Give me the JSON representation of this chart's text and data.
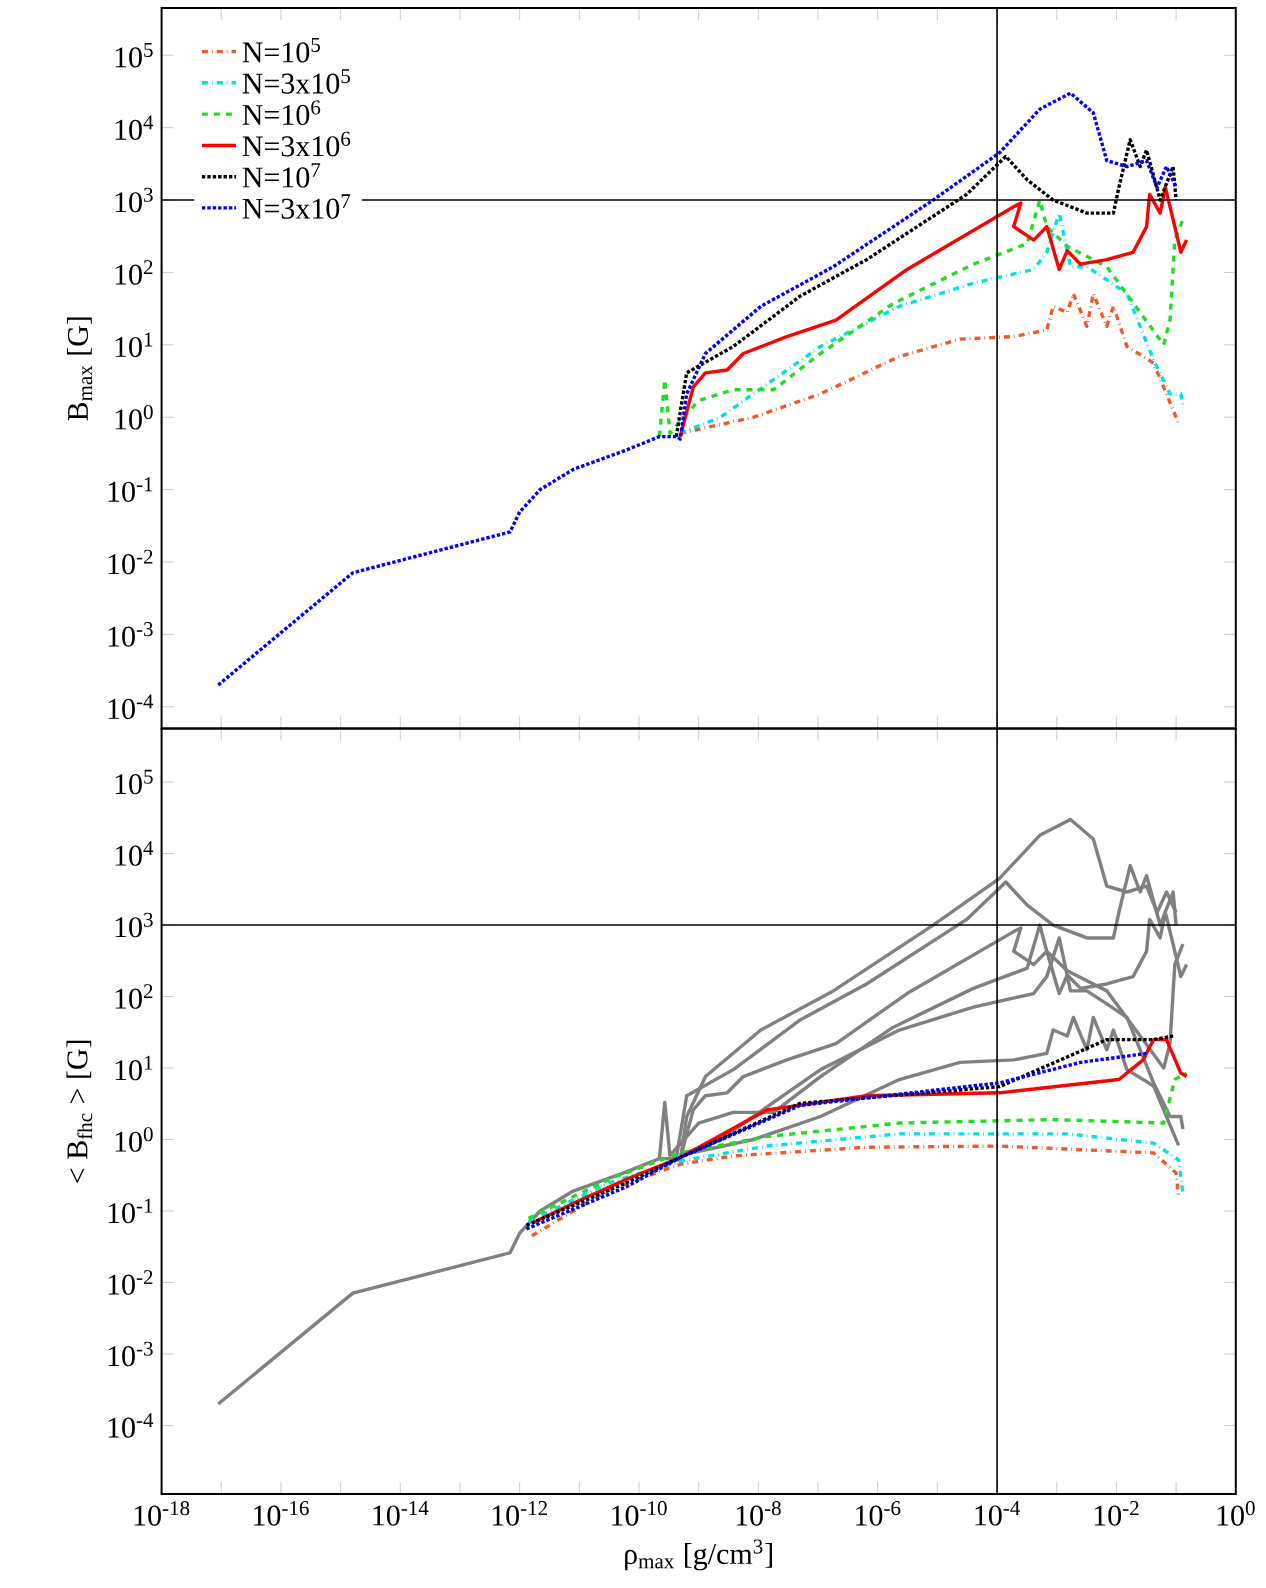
{
  "chart_data": [
    {
      "type": "line",
      "ylabel": "B$_{max}$ [G]",
      "log": "xy",
      "grid": false,
      "legend": "top left",
      "marker": "none",
      "tick_labels": "y",
      "xlim": [
        1e-18,
        1
      ],
      "ylim": [
        5e-05,
        450000.0
      ],
      "xticks": [
        {
          "value": 1e-18,
          "label": null
        },
        {
          "value": 1e-17,
          "label": null
        },
        {
          "value": 1e-16,
          "label": null
        },
        {
          "value": 1e-15,
          "label": null
        },
        {
          "value": 1e-14,
          "label": null
        },
        {
          "value": 1e-13,
          "label": null
        },
        {
          "value": 1e-12,
          "label": null
        },
        {
          "value": 1e-11,
          "label": null
        },
        {
          "value": 1e-10,
          "label": null
        },
        {
          "value": 1e-09,
          "label": null
        },
        {
          "value": 1e-08,
          "label": null
        },
        {
          "value": 1e-07,
          "label": null
        },
        {
          "value": 1e-06,
          "label": null
        },
        {
          "value": 1e-05,
          "label": null
        },
        {
          "value": 0.0001,
          "label": null
        },
        {
          "value": 0.001,
          "label": null
        },
        {
          "value": 0.01,
          "label": null
        },
        {
          "value": 0.1,
          "label": null
        },
        {
          "value": 1,
          "label": null
        }
      ],
      "yticks": [
        {
          "value": 0.0001,
          "label": "10$^{-4}$"
        },
        {
          "value": 0.001,
          "label": "10$^{-3}$"
        },
        {
          "value": 0.01,
          "label": "10$^{-2}$"
        },
        {
          "value": 0.1,
          "label": "10$^{-1}$"
        },
        {
          "value": 1,
          "label": "10$^{0}$"
        },
        {
          "value": 10,
          "label": "10$^{1}$"
        },
        {
          "value": 100,
          "label": "10$^{2}$"
        },
        {
          "value": 1000,
          "label": "10$^{3}$"
        },
        {
          "value": 10000.0,
          "label": "10$^{4}$"
        },
        {
          "value": 100000.0,
          "label": "10$^{5}$"
        }
      ],
      "ref_lines": [
        {
          "axis": "x",
          "value": 0.0001,
          "color": "#000000"
        },
        {
          "axis": "y",
          "value": 1000,
          "color": "#000000"
        }
      ],
      "series": [
        {
          "name": "N=10$^{5}$",
          "color": "#f05a28",
          "line_style": "dashdot",
          "x": [
            4.9e-10,
            8.3e-09,
            1.1e-07,
            2.3e-06,
            2.4e-05,
            0.00019,
            0.00068,
            0.00087,
            0.0015,
            0.0019,
            0.0032,
            0.0041,
            0.0069,
            0.0089,
            0.015,
            0.042,
            0.11
          ],
          "values": [
            0.6,
            1.0,
            2.1,
            6.9,
            12,
            13,
            16,
            34,
            28,
            51,
            18,
            51,
            18,
            34,
            9.5,
            5.6,
            0.83
          ]
        },
        {
          "name": "N=3x10$^{5}$",
          "color": "#00e0e8",
          "line_style": "dashdot",
          "x": [
            4.9e-10,
            2.3e-09,
            1.1e-07,
            2.3e-06,
            4e-05,
            0.00041,
            0.00068,
            0.0011,
            0.0017,
            0.0032,
            0.0069,
            0.015,
            0.042,
            0.079,
            0.12,
            0.13
          ],
          "values": [
            0.6,
            1.0,
            9.5,
            34,
            71,
            110,
            190,
            660,
            120,
            120,
            79,
            51,
            6.2,
            2.1,
            2.1,
            1.4
          ]
        },
        {
          "name": "N=10$^{6}$",
          "color": "#22dd22",
          "line_style": "dashed",
          "x": [
            2.2e-10,
            2.7e-10,
            3.3e-10,
            1e-09,
            3.8e-09,
            1.8e-08,
            1.1e-07,
            1.8e-06,
            4e-05,
            0.00032,
            0.00052,
            0.00068,
            0.0015,
            0.0069,
            0.025,
            0.062,
            0.079,
            0.095,
            0.13
          ],
          "values": [
            0.54,
            3.3,
            0.6,
            1.7,
            2.4,
            2.4,
            7.6,
            37,
            130,
            250,
            1000,
            430,
            230,
            120,
            28,
            10,
            22,
            280,
            540
          ]
        },
        {
          "name": "N=3x10$^{6}$",
          "color": "#ff0000",
          "line_style": "solid",
          "x": [
            4.9e-10,
            8.1e-10,
            1.3e-09,
            3e-09,
            5.6e-09,
            3e-08,
            2e-07,
            3.1e-06,
            0.00019,
            0.00025,
            0.00019,
            0.00041,
            0.00068,
            0.0011,
            0.0015,
            0.0025,
            0.0069,
            0.019,
            0.032,
            0.036,
            0.054,
            0.066,
            0.089,
            0.12,
            0.15
          ],
          "values": [
            0.54,
            2.6,
            4.1,
            4.5,
            7.6,
            13,
            22,
            110,
            810,
            910,
            430,
            280,
            430,
            110,
            200,
            130,
            150,
            190,
            430,
            1200,
            660,
            1500,
            540,
            190,
            280
          ]
        },
        {
          "name": "N=10$^{7}$",
          "color": "#000000",
          "line_style": "dotted",
          "x": [
            4.2e-10,
            6.3e-10,
            3.8e-09,
            5e-08,
            6.5e-07,
            3.1e-05,
            0.00014,
            0.00032,
            0.00087,
            0.0032,
            0.0089,
            0.011,
            0.017,
            0.025,
            0.032,
            0.054,
            0.089,
            0.1
          ],
          "values": [
            0.54,
            4.1,
            9.5,
            47,
            150,
            1200,
            4000,
            1900,
            1000,
            660,
            660,
            1500,
            6800,
            2900,
            4900,
            1000,
            2900,
            1000
          ]
        },
        {
          "name": "N=3x10$^{7}$",
          "color": "#0000ff",
          "line_style": "dotted",
          "x": [
            8.9e-18,
            1.6e-15,
            6.9e-13,
            1e-12,
            2.2e-12,
            7.9e-12,
            6e-11,
            2.2e-10,
            4.2e-10,
            4.9e-10,
            6.3e-10,
            1.3e-09,
            1.1e-08,
            1.8e-07,
            8.5e-06,
            0.00011,
            0.00052,
            0.0017,
            0.0041,
            0.0069,
            0.015,
            0.032,
            0.048,
            0.069,
            0.1
          ],
          "values": [
            0.0002,
            0.0071,
            0.026,
            0.049,
            0.1,
            0.19,
            0.35,
            0.54,
            0.54,
            0.5,
            2.1,
            7.6,
            34,
            120,
            1000,
            4500,
            18000,
            30000,
            16000,
            3500,
            2900,
            3500,
            1500,
            2900,
            1500
          ]
        }
      ]
    },
    {
      "type": "line",
      "xlabel": "ρ$_{max}$ [g/cm$^{3}$]",
      "ylabel": "< B$_{fhc}$ > [G]",
      "log": "xy",
      "grid": false,
      "marker": "none",
      "xlim": [
        1e-18,
        1
      ],
      "ylim": [
        1.1e-05,
        560000.0
      ],
      "xticks": [
        {
          "value": 1e-18,
          "label": "10$^{-18}$"
        },
        {
          "value": 1e-17,
          "label": null
        },
        {
          "value": 1e-16,
          "label": "10$^{-16}$"
        },
        {
          "value": 1e-15,
          "label": null
        },
        {
          "value": 1e-14,
          "label": "10$^{-14}$"
        },
        {
          "value": 1e-13,
          "label": null
        },
        {
          "value": 1e-12,
          "label": "10$^{-12}$"
        },
        {
          "value": 1e-11,
          "label": null
        },
        {
          "value": 1e-10,
          "label": "10$^{-10}$"
        },
        {
          "value": 1e-09,
          "label": null
        },
        {
          "value": 1e-08,
          "label": "10$^{-8}$"
        },
        {
          "value": 1e-07,
          "label": null
        },
        {
          "value": 1e-06,
          "label": "10$^{-6}$"
        },
        {
          "value": 1e-05,
          "label": null
        },
        {
          "value": 0.0001,
          "label": "10$^{-4}$"
        },
        {
          "value": 0.001,
          "label": null
        },
        {
          "value": 0.01,
          "label": "10$^{-2}$"
        },
        {
          "value": 0.1,
          "label": null
        },
        {
          "value": 1,
          "label": "10$^{0}$"
        }
      ],
      "yticks": [
        {
          "value": 0.0001,
          "label": "10$^{-4}$"
        },
        {
          "value": 0.001,
          "label": "10$^{-3}$"
        },
        {
          "value": 0.01,
          "label": "10$^{-2}$"
        },
        {
          "value": 0.1,
          "label": "10$^{-1}$"
        },
        {
          "value": 1,
          "label": "10$^{0}$"
        },
        {
          "value": 10,
          "label": "10$^{1}$"
        },
        {
          "value": 100,
          "label": "10$^{2}$"
        },
        {
          "value": 1000,
          "label": "10$^{3}$"
        },
        {
          "value": 10000.0,
          "label": "10$^{4}$"
        },
        {
          "value": 100000.0,
          "label": "10$^{5}$"
        }
      ],
      "ref_lines": [
        {
          "axis": "x",
          "value": 0.0001,
          "color": "#000000"
        },
        {
          "axis": "y",
          "value": 1000,
          "color": "#000000"
        }
      ],
      "series": [
        {
          "color": "#808080",
          "line_style": "solid",
          "x": [
            4.9e-10,
            8.3e-09,
            1.1e-07,
            2.3e-06,
            2.4e-05,
            0.00019,
            0.00068,
            0.00087,
            0.0015,
            0.0019,
            0.0032,
            0.0041,
            0.0069,
            0.0089,
            0.015,
            0.042,
            0.11
          ],
          "values": [
            0.6,
            1.0,
            2.1,
            6.9,
            12,
            13,
            16,
            34,
            28,
            51,
            18,
            51,
            18,
            34,
            9.5,
            5.6,
            0.83
          ]
        },
        {
          "color": "#808080",
          "line_style": "solid",
          "x": [
            4.9e-10,
            2.3e-09,
            1.1e-07,
            2.3e-06,
            4e-05,
            0.00041,
            0.00068,
            0.0011,
            0.0017,
            0.0032,
            0.0069,
            0.015,
            0.042,
            0.079,
            0.12,
            0.13
          ],
          "values": [
            0.6,
            1.0,
            9.5,
            34,
            71,
            110,
            190,
            660,
            120,
            120,
            79,
            51,
            6.2,
            2.1,
            2.1,
            1.4
          ]
        },
        {
          "color": "#808080",
          "line_style": "solid",
          "x": [
            2.2e-10,
            2.7e-10,
            3.3e-10,
            1e-09,
            3.8e-09,
            1.8e-08,
            1.1e-07,
            1.8e-06,
            4e-05,
            0.00032,
            0.00052,
            0.00068,
            0.0015,
            0.0069,
            0.025,
            0.062,
            0.079,
            0.095,
            0.13
          ],
          "values": [
            0.54,
            3.3,
            0.6,
            1.7,
            2.4,
            2.4,
            7.6,
            37,
            130,
            250,
            1000,
            430,
            230,
            120,
            28,
            10,
            22,
            280,
            540
          ]
        },
        {
          "color": "#808080",
          "line_style": "solid",
          "x": [
            4.9e-10,
            8.1e-10,
            1.3e-09,
            3e-09,
            5.6e-09,
            3e-08,
            2e-07,
            3.1e-06,
            0.00019,
            0.00025,
            0.00019,
            0.00041,
            0.00068,
            0.0011,
            0.0015,
            0.0025,
            0.0069,
            0.019,
            0.032,
            0.036,
            0.054,
            0.066,
            0.089,
            0.12,
            0.15
          ],
          "values": [
            0.54,
            2.6,
            4.1,
            4.5,
            7.6,
            13,
            22,
            110,
            810,
            910,
            430,
            280,
            430,
            110,
            200,
            130,
            150,
            190,
            430,
            1200,
            660,
            1500,
            540,
            190,
            280
          ]
        },
        {
          "color": "#808080",
          "line_style": "solid",
          "x": [
            4.2e-10,
            6.3e-10,
            3.8e-09,
            5e-08,
            6.5e-07,
            3.1e-05,
            0.00014,
            0.00032,
            0.00087,
            0.0032,
            0.0089,
            0.011,
            0.017,
            0.025,
            0.032,
            0.054,
            0.089,
            0.1
          ],
          "values": [
            0.54,
            4.1,
            9.5,
            47,
            150,
            1200,
            4000,
            1900,
            1000,
            660,
            660,
            1500,
            6800,
            2900,
            4900,
            1000,
            2900,
            1000
          ]
        },
        {
          "color": "#808080",
          "line_style": "solid",
          "x": [
            8.9e-18,
            1.6e-15,
            6.9e-13,
            1e-12,
            2.2e-12,
            7.9e-12,
            6e-11,
            2.2e-10,
            4.2e-10,
            4.9e-10,
            6.3e-10,
            1.3e-09,
            1.1e-08,
            1.8e-07,
            8.5e-06,
            0.00011,
            0.00052,
            0.0017,
            0.0041,
            0.0069,
            0.015,
            0.032,
            0.048,
            0.069,
            0.1
          ],
          "values": [
            0.0002,
            0.0071,
            0.026,
            0.049,
            0.1,
            0.19,
            0.35,
            0.54,
            0.54,
            0.5,
            2.1,
            7.6,
            34,
            120,
            1000,
            4500,
            18000,
            30000,
            16000,
            3500,
            2900,
            3500,
            1500,
            2900,
            1500
          ]
        },
        {
          "color": "#f05a28",
          "line_style": "dashdot",
          "x": [
            1.6e-12,
            3.2e-11,
            4.9e-10,
            3.8e-09,
            6.5e-07,
            0.00011,
            0.042,
            0.1,
            0.11
          ],
          "values": [
            0.045,
            0.2,
            0.45,
            0.59,
            0.78,
            0.81,
            0.65,
            0.34,
            0.16
          ]
        },
        {
          "color": "#00e0e8",
          "line_style": "dashdot",
          "x": [
            1.4e-12,
            3.2e-11,
            4.9e-10,
            1.4e-08,
            2.3e-06,
            0.0015,
            0.042,
            0.11,
            0.13
          ],
          "values": [
            0.071,
            0.25,
            0.5,
            0.81,
            1.2,
            1.2,
            0.89,
            0.52,
            0.18
          ]
        },
        {
          "color": "#22dd22",
          "line_style": "dashed",
          "x": [
            1.4e-12,
            3.2e-11,
            4.9e-10,
            1.4e-08,
            2.3e-06,
            0.00087,
            0.062,
            0.095,
            0.15
          ],
          "values": [
            0.079,
            0.28,
            0.65,
            1.1,
            1.7,
            1.9,
            1.7,
            6.9,
            8.5
          ]
        },
        {
          "color": "#ff0000",
          "line_style": "solid",
          "x": [
            1.7e-12,
            1e-11,
            6.3e-11,
            4.9e-10,
            1.4e-08,
            6.5e-07,
            0.00011,
            0.011,
            0.028,
            0.042,
            0.069,
            0.12,
            0.15
          ],
          "values": [
            0.069,
            0.14,
            0.28,
            0.56,
            2.6,
            4.1,
            4.5,
            6.9,
            13,
            25,
            25,
            8.5,
            7.6
          ]
        },
        {
          "color": "#000000",
          "line_style": "dotted",
          "x": [
            1.3e-12,
            6.3e-11,
            4.9e-10,
            5e-08,
            0.00011,
            0.0069,
            0.042,
            0.089
          ],
          "values": [
            0.063,
            0.25,
            0.56,
            3.2,
            5.5,
            25,
            25,
            28
          ]
        },
        {
          "color": "#0000ff",
          "line_style": "dotted",
          "x": [
            1.3e-12,
            6.3e-11,
            4.9e-10,
            5e-08,
            0.00011,
            0.0025,
            0.032
          ],
          "values": [
            0.056,
            0.22,
            0.56,
            3.0,
            6.2,
            12,
            16
          ]
        }
      ]
    }
  ]
}
